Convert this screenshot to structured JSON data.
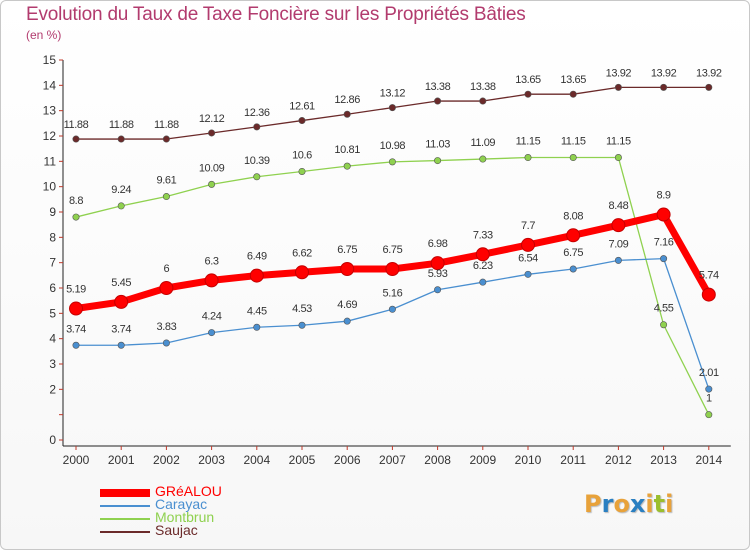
{
  "header": {
    "title": "Evolution du Taux de Taxe Foncière sur les Propriétés Bâties",
    "unit": "(en %)"
  },
  "branding": {
    "logo_letters": [
      "P",
      "r",
      "o",
      "x",
      "i",
      "t",
      "i"
    ],
    "logo_colors": [
      "#e8a23a",
      "#2a7fc1",
      "#e8a23a",
      "#2a7fc1",
      "#e8a23a",
      "#9bbf2e",
      "#e8a23a"
    ]
  },
  "chart_data": {
    "type": "line",
    "title": "Evolution du Taux de Taxe Foncière sur les Propriétés Bâties",
    "ylabel": "(en %)",
    "xlabel": "",
    "x": [
      "2000",
      "2001",
      "2002",
      "2003",
      "2004",
      "2005",
      "2006",
      "2007",
      "2008",
      "2009",
      "2010",
      "2011",
      "2012",
      "2013",
      "2014"
    ],
    "ylim": [
      0,
      15
    ],
    "y_ticks": [
      "0",
      "",
      "2",
      "3",
      "4",
      "5",
      "6",
      "7",
      "8",
      "9",
      "10",
      "11",
      "12",
      "13",
      "14",
      "15"
    ],
    "grid": false,
    "legend_position": "bottom-left",
    "series": [
      {
        "name": "Saujac",
        "color": "#6b2a2a",
        "values": [
          11.88,
          11.88,
          11.88,
          12.12,
          12.36,
          12.61,
          12.86,
          13.12,
          13.38,
          13.38,
          13.65,
          13.65,
          13.92,
          13.92,
          13.92
        ],
        "labels": [
          "11.88",
          "11.88",
          "11.88",
          "12.12",
          "12.36",
          "12.61",
          "12.86",
          "13.12",
          "13.38",
          "13.38",
          "13.65",
          "13.65",
          "13.92",
          "13.92",
          "13.92"
        ]
      },
      {
        "name": "Montbrun",
        "color": "#8fd14f",
        "values": [
          8.8,
          9.24,
          9.61,
          10.09,
          10.39,
          10.6,
          10.81,
          10.98,
          11.03,
          11.09,
          11.15,
          11.15,
          11.15,
          4.55,
          1
        ],
        "labels": [
          "8.8",
          "9.24",
          "9.61",
          "10.09",
          "10.39",
          "10.6",
          "10.81",
          "10.98",
          "11.03",
          "11.09",
          "11.15",
          "11.15",
          "11.15",
          "4.55",
          "1"
        ]
      },
      {
        "name": "Carayac",
        "color": "#4a8fd0",
        "values": [
          3.74,
          3.74,
          3.83,
          4.24,
          4.45,
          4.53,
          4.69,
          5.16,
          5.93,
          6.23,
          6.54,
          6.75,
          7.09,
          7.16,
          2.01
        ],
        "labels": [
          "3.74",
          "3.74",
          "3.83",
          "4.24",
          "4.45",
          "4.53",
          "4.69",
          "5.16",
          "5.93",
          "6.23",
          "6.54",
          "6.75",
          "7.09",
          "7.16",
          "2.01"
        ]
      },
      {
        "name": "GRéALOU",
        "color": "#ff0000",
        "values": [
          5.19,
          5.45,
          6,
          6.3,
          6.49,
          6.62,
          6.75,
          6.75,
          6.98,
          7.33,
          7.7,
          8.08,
          8.48,
          8.9,
          5.74
        ],
        "labels": [
          "5.19",
          "5.45",
          "6",
          "6.3",
          "6.49",
          "6.62",
          "6.75",
          "6.75",
          "6.98",
          "7.33",
          "7.7",
          "8.08",
          "8.48",
          "8.9",
          "5.74"
        ]
      }
    ],
    "legend_order": [
      "GRéALOU",
      "Carayac",
      "Montbrun",
      "Saujac"
    ]
  }
}
